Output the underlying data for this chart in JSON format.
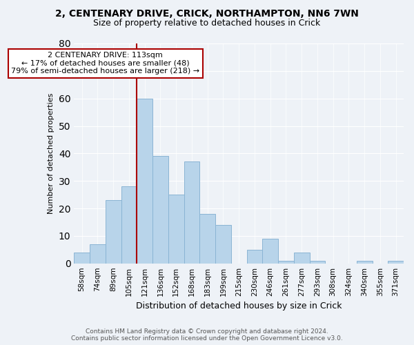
{
  "title": "2, CENTENARY DRIVE, CRICK, NORTHAMPTON, NN6 7WN",
  "subtitle": "Size of property relative to detached houses in Crick",
  "xlabel": "Distribution of detached houses by size in Crick",
  "ylabel": "Number of detached properties",
  "categories": [
    "58sqm",
    "74sqm",
    "89sqm",
    "105sqm",
    "121sqm",
    "136sqm",
    "152sqm",
    "168sqm",
    "183sqm",
    "199sqm",
    "215sqm",
    "230sqm",
    "246sqm",
    "261sqm",
    "277sqm",
    "293sqm",
    "308sqm",
    "324sqm",
    "340sqm",
    "355sqm",
    "371sqm"
  ],
  "values": [
    4,
    7,
    23,
    28,
    60,
    39,
    25,
    37,
    18,
    14,
    0,
    5,
    9,
    1,
    4,
    1,
    0,
    0,
    1,
    0,
    1
  ],
  "bar_color": "#b8d4ea",
  "bar_edge_color": "#8ab4d4",
  "vline_color": "#aa0000",
  "annotation_box_edge": "#aa0000",
  "annotation_box_face": "#ffffff",
  "annotation_line1": "2 CENTENARY DRIVE: 113sqm",
  "annotation_line2": "← 17% of detached houses are smaller (48)",
  "annotation_line3": "79% of semi-detached houses are larger (218) →",
  "ylim": [
    0,
    80
  ],
  "yticks": [
    0,
    10,
    20,
    30,
    40,
    50,
    60,
    70,
    80
  ],
  "background_color": "#eef2f7",
  "grid_color": "#ffffff",
  "footer_line1": "Contains HM Land Registry data © Crown copyright and database right 2024.",
  "footer_line2": "Contains public sector information licensed under the Open Government Licence v3.0.",
  "title_fontsize": 10,
  "subtitle_fontsize": 9,
  "xlabel_fontsize": 9,
  "ylabel_fontsize": 8,
  "tick_fontsize": 7.5,
  "footer_fontsize": 6.5
}
